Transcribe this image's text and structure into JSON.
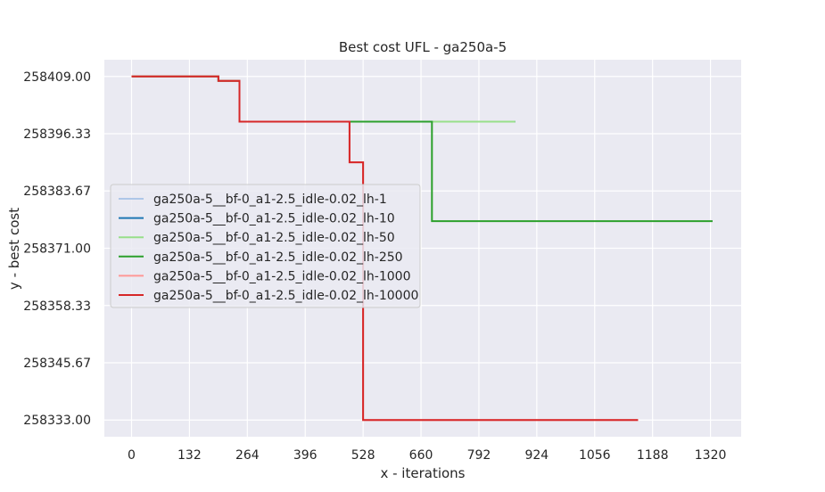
{
  "chart_data": {
    "type": "line",
    "title": "Best cost UFL - ga250a-5",
    "xlabel": "x - iterations",
    "ylabel": "y - best cost",
    "xlim": [
      -62,
      1390
    ],
    "ylim": [
      258329.3,
      258412.7
    ],
    "x_ticks": [
      0,
      132,
      264,
      396,
      528,
      660,
      792,
      924,
      1056,
      1188,
      1320
    ],
    "x_tick_labels": [
      "0",
      "132",
      "264",
      "396",
      "528",
      "660",
      "792",
      "924",
      "1056",
      "1188",
      "1320"
    ],
    "y_ticks": [
      258333.0,
      258345.67,
      258358.33,
      258371.0,
      258383.67,
      258396.33,
      258409.0
    ],
    "y_tick_labels": [
      "258333.00",
      "258345.67",
      "258358.33",
      "258371.00",
      "258383.67",
      "258396.33",
      "258409.00"
    ],
    "grid": true,
    "legend_position": "center-left",
    "series": [
      {
        "name": "ga250a-5__bf-0_a1-2.5_idle-0.02_lh-1",
        "color": "#aec7e8",
        "x": [
          0,
          198,
          198,
          246,
          246,
          875
        ],
        "y": [
          258409.0,
          258409.0,
          258408.0,
          258408.0,
          258399.0,
          258399.0
        ]
      },
      {
        "name": "ga250a-5__bf-0_a1-2.5_idle-0.02_lh-10",
        "color": "#1f77b4",
        "x": [
          0,
          198,
          198,
          246,
          246,
          875
        ],
        "y": [
          258409.0,
          258409.0,
          258408.0,
          258408.0,
          258399.0,
          258399.0
        ]
      },
      {
        "name": "ga250a-5__bf-0_a1-2.5_idle-0.02_lh-50",
        "color": "#98df8a",
        "x": [
          0,
          198,
          198,
          246,
          246,
          875
        ],
        "y": [
          258409.0,
          258409.0,
          258408.0,
          258408.0,
          258399.0,
          258399.0
        ]
      },
      {
        "name": "ga250a-5__bf-0_a1-2.5_idle-0.02_lh-250",
        "color": "#2ca02c",
        "x": [
          0,
          198,
          198,
          246,
          246,
          685,
          685,
          1325
        ],
        "y": [
          258409.0,
          258409.0,
          258408.0,
          258408.0,
          258399.0,
          258399.0,
          258377.0,
          258377.0
        ]
      },
      {
        "name": "ga250a-5__bf-0_a1-2.5_idle-0.02_lh-1000",
        "color": "#ff9896",
        "x": [
          0,
          198,
          198,
          246,
          246,
          497,
          497,
          528,
          528,
          1155
        ],
        "y": [
          258409.0,
          258409.0,
          258408.0,
          258408.0,
          258399.0,
          258399.0,
          258390.0,
          258390.0,
          258333.0,
          258333.0
        ]
      },
      {
        "name": "ga250a-5__bf-0_a1-2.5_idle-0.02_lh-10000",
        "color": "#d62728",
        "x": [
          0,
          198,
          198,
          246,
          246,
          497,
          497,
          528,
          528,
          1155
        ],
        "y": [
          258409.0,
          258409.0,
          258408.0,
          258408.0,
          258399.0,
          258399.0,
          258390.0,
          258390.0,
          258333.0,
          258333.0
        ]
      }
    ]
  }
}
